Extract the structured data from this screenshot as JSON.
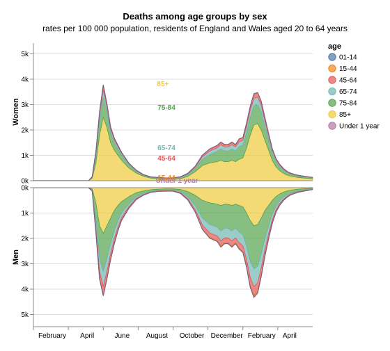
{
  "chart_data": {
    "type": "area",
    "title": "Deaths among age groups by sex",
    "subtitle": "rates per 100 000 population, residents of England and Wales aged 20 to 64 years",
    "x_ticks": [
      "February",
      "April",
      "June",
      "August",
      "October",
      "December",
      "February",
      "April"
    ],
    "y_ticks": [
      "0k",
      "1k",
      "2k",
      "3k",
      "4k",
      "5k"
    ],
    "x": [
      0,
      2,
      4,
      6,
      8,
      9,
      10,
      11,
      12,
      13,
      14,
      15,
      16,
      17,
      18,
      19,
      20,
      21,
      22,
      23,
      24,
      26,
      28,
      30,
      32,
      34,
      36,
      38,
      40,
      42,
      44,
      46,
      48,
      50,
      51,
      52,
      53,
      54,
      55,
      56,
      57,
      58,
      59,
      60,
      61,
      62,
      63,
      64,
      65,
      66,
      67,
      68,
      69,
      70,
      71,
      72,
      74,
      76
    ],
    "legend": {
      "title": "age",
      "placement": "right",
      "items": [
        {
          "name": "01-14",
          "color": "#4c78a8"
        },
        {
          "name": "15-44",
          "color": "#f58518"
        },
        {
          "name": "45-64",
          "color": "#e45756"
        },
        {
          "name": "65-74",
          "color": "#72b7b2"
        },
        {
          "name": "75-84",
          "color": "#54a24b"
        },
        {
          "name": "85+",
          "color": "#eeca3b"
        },
        {
          "name": "Under 1 year",
          "color": "#b279a2"
        }
      ]
    },
    "panels": [
      {
        "name": "Women",
        "direction": "up",
        "series_labels": [
          "85+",
          "75-84",
          "65-74",
          "45-64",
          "15-44",
          "Under 1 year"
        ],
        "series": [
          {
            "name": "85+",
            "values": [
              0,
              0,
              0,
              0,
              0,
              0,
              0,
              0,
              0,
              0,
              0,
              0,
              100,
              700,
              1800,
              2500,
              2100,
              1500,
              1200,
              1000,
              800,
              500,
              300,
              170,
              100,
              80,
              60,
              60,
              80,
              170,
              350,
              600,
              700,
              750,
              800,
              750,
              750,
              800,
              750,
              850,
              900,
              1300,
              1800,
              2200,
              2250,
              2000,
              1600,
              1200,
              800,
              550,
              400,
              300,
              220,
              180,
              150,
              130,
              100,
              80
            ]
          },
          {
            "name": "75-84",
            "values": [
              0,
              0,
              0,
              0,
              0,
              0,
              0,
              0,
              0,
              0,
              0,
              0,
              40,
              260,
              600,
              800,
              600,
              400,
              300,
              250,
              200,
              120,
              70,
              40,
              30,
              30,
              30,
              30,
              50,
              70,
              120,
              250,
              330,
              400,
              450,
              420,
              420,
              450,
              420,
              500,
              500,
              600,
              700,
              750,
              750,
              700,
              550,
              400,
              280,
              200,
              150,
              110,
              90,
              70,
              60,
              50,
              40,
              30
            ]
          },
          {
            "name": "65-74",
            "values": [
              0,
              0,
              0,
              0,
              0,
              0,
              0,
              0,
              0,
              0,
              0,
              0,
              10,
              120,
              200,
              300,
              210,
              140,
              110,
              90,
              70,
              40,
              25,
              15,
              10,
              10,
              10,
              10,
              15,
              30,
              60,
              100,
              140,
              150,
              170,
              160,
              160,
              170,
              160,
              190,
              190,
              230,
              270,
              300,
              300,
              270,
              210,
              160,
              110,
              80,
              60,
              45,
              35,
              28,
              24,
              20,
              15,
              12
            ]
          },
          {
            "name": "45-64",
            "values": [
              0,
              0,
              0,
              0,
              0,
              0,
              0,
              0,
              0,
              0,
              0,
              0,
              5,
              60,
              100,
              150,
              105,
              70,
              55,
              45,
              35,
              20,
              12,
              8,
              5,
              5,
              5,
              5,
              8,
              15,
              30,
              50,
              70,
              75,
              85,
              80,
              80,
              85,
              80,
              95,
              95,
              115,
              135,
              150,
              150,
              135,
              105,
              80,
              55,
              40,
              30,
              22,
              18,
              14,
              12,
              10,
              8,
              6
            ]
          },
          {
            "name": "15-44",
            "values": [
              0,
              0,
              0,
              0,
              0,
              0,
              0,
              0,
              0,
              0,
              0,
              0,
              1,
              8,
              14,
              20,
              14,
              10,
              8,
              6,
              5,
              4,
              3,
              2,
              1,
              1,
              1,
              1,
              1,
              2,
              4,
              7,
              10,
              11,
              12,
              12,
              12,
              12,
              12,
              13,
              13,
              16,
              19,
              21,
              21,
              19,
              15,
              11,
              8,
              6,
              5,
              4,
              3,
              3,
              2,
              2,
              2,
              1
            ]
          },
          {
            "name": "Under 1 year",
            "values": [
              2,
              2,
              2,
              2,
              2,
              2,
              2,
              2,
              2,
              2,
              2,
              2,
              2,
              3,
              3,
              4,
              3,
              3,
              3,
              3,
              3,
              3,
              3,
              3,
              3,
              3,
              3,
              3,
              3,
              3,
              3,
              4,
              4,
              4,
              4,
              4,
              4,
              4,
              4,
              4,
              4,
              4,
              5,
              5,
              5,
              5,
              4,
              4,
              4,
              4,
              3,
              3,
              3,
              3,
              3,
              3,
              3,
              3
            ]
          },
          {
            "name": "01-14",
            "values": [
              0.5,
              0.5,
              0.5,
              0.5,
              0.5,
              0.5,
              0.5,
              0.5,
              0.5,
              0.5,
              0.5,
              0.5,
              0.5,
              0.5,
              0.5,
              0.5,
              0.5,
              0.5,
              0.5,
              0.5,
              0.5,
              0.5,
              0.5,
              0.5,
              0.5,
              0.5,
              0.5,
              0.5,
              0.5,
              0.5,
              0.5,
              0.5,
              0.5,
              0.5,
              0.5,
              0.5,
              0.5,
              0.5,
              0.5,
              0.5,
              0.5,
              0.5,
              0.5,
              0.5,
              0.5,
              0.5,
              0.5,
              0.5,
              0.5,
              0.5,
              0.5,
              0.5,
              0.5,
              0.5,
              0.5,
              0.5,
              0.5,
              0.5
            ]
          }
        ]
      },
      {
        "name": "Men",
        "direction": "down",
        "series_labels": [],
        "series": [
          {
            "name": "85+",
            "values": [
              0,
              0,
              0,
              0,
              0,
              0,
              0,
              0,
              0,
              0,
              0,
              0,
              50,
              600,
              1500,
              1800,
              1500,
              1200,
              900,
              700,
              550,
              350,
              200,
              130,
              80,
              60,
              50,
              50,
              70,
              150,
              300,
              500,
              600,
              650,
              700,
              650,
              650,
              700,
              650,
              700,
              750,
              1000,
              1300,
              1500,
              1450,
              1200,
              900,
              700,
              500,
              350,
              250,
              180,
              130,
              100,
              80,
              60,
              40,
              20
            ]
          },
          {
            "name": "75-84",
            "values": [
              0,
              0,
              0,
              0,
              0,
              0,
              0,
              0,
              0,
              0,
              0,
              0,
              50,
              700,
              1300,
              1500,
              1300,
              1000,
              800,
              600,
              450,
              280,
              160,
              90,
              60,
              50,
              50,
              50,
              90,
              200,
              400,
              700,
              850,
              900,
              1000,
              950,
              950,
              1000,
              950,
              1050,
              1100,
              1300,
              1600,
              1700,
              1650,
              1400,
              1100,
              800,
              550,
              380,
              270,
              200,
              150,
              110,
              90,
              70,
              50,
              30
            ]
          },
          {
            "name": "65-74",
            "values": [
              0,
              0,
              0,
              0,
              0,
              0,
              0,
              0,
              0,
              0,
              0,
              0,
              20,
              300,
              500,
              600,
              500,
              400,
              320,
              250,
              180,
              110,
              65,
              40,
              25,
              20,
              20,
              20,
              40,
              80,
              160,
              280,
              340,
              350,
              400,
              380,
              380,
              400,
              380,
              420,
              440,
              520,
              640,
              700,
              660,
              560,
              440,
              320,
              220,
              150,
              110,
              80,
              60,
              45,
              35,
              30,
              20,
              12
            ]
          },
          {
            "name": "45-64",
            "values": [
              0,
              0,
              0,
              0,
              0,
              0,
              0,
              0,
              0,
              0,
              0,
              0,
              10,
              150,
              250,
              300,
              250,
              200,
              160,
              120,
              90,
              55,
              32,
              20,
              12,
              10,
              10,
              10,
              20,
              40,
              80,
              140,
              170,
              180,
              200,
              190,
              190,
              200,
              190,
              210,
              220,
              260,
              320,
              350,
              330,
              280,
              220,
              160,
              110,
              75,
              55,
              40,
              30,
              22,
              18,
              15,
              10,
              6
            ]
          },
          {
            "name": "15-44",
            "values": [
              0,
              0,
              0,
              0,
              0,
              0,
              0,
              0,
              0,
              0,
              0,
              0,
              2,
              25,
              45,
              55,
              45,
              35,
              28,
              22,
              16,
              10,
              6,
              4,
              2,
              2,
              2,
              2,
              3,
              7,
              14,
              25,
              30,
              32,
              36,
              34,
              34,
              36,
              34,
              38,
              40,
              47,
              58,
              63,
              59,
              50,
              40,
              29,
              20,
              14,
              10,
              7,
              5,
              4,
              3,
              3,
              2,
              1
            ]
          },
          {
            "name": "Under 1 year",
            "values": [
              3,
              3,
              3,
              3,
              3,
              3,
              3,
              3,
              3,
              3,
              3,
              3,
              3,
              4,
              4,
              5,
              4,
              4,
              4,
              4,
              4,
              4,
              4,
              4,
              4,
              4,
              4,
              4,
              4,
              4,
              4,
              5,
              5,
              5,
              5,
              5,
              5,
              5,
              5,
              5,
              5,
              5,
              6,
              6,
              6,
              6,
              5,
              5,
              5,
              5,
              4,
              4,
              4,
              4,
              4,
              4,
              4,
              4
            ]
          },
          {
            "name": "01-14",
            "values": [
              0.5,
              0.5,
              0.5,
              0.5,
              0.5,
              0.5,
              0.5,
              0.5,
              0.5,
              0.5,
              0.5,
              0.5,
              0.5,
              0.5,
              0.5,
              0.5,
              0.5,
              0.5,
              0.5,
              0.5,
              0.5,
              0.5,
              0.5,
              0.5,
              0.5,
              0.5,
              0.5,
              0.5,
              0.5,
              0.5,
              0.5,
              0.5,
              0.5,
              0.5,
              0.5,
              0.5,
              0.5,
              0.5,
              0.5,
              0.5,
              0.5,
              0.5,
              0.5,
              0.5,
              0.5,
              0.5,
              0.5,
              0.5,
              0.5,
              0.5,
              0.5,
              0.5,
              0.5,
              0.5,
              0.5,
              0.5,
              0.5,
              0.5
            ]
          }
        ]
      }
    ],
    "ylim": [
      0,
      5500
    ],
    "grid": true
  }
}
